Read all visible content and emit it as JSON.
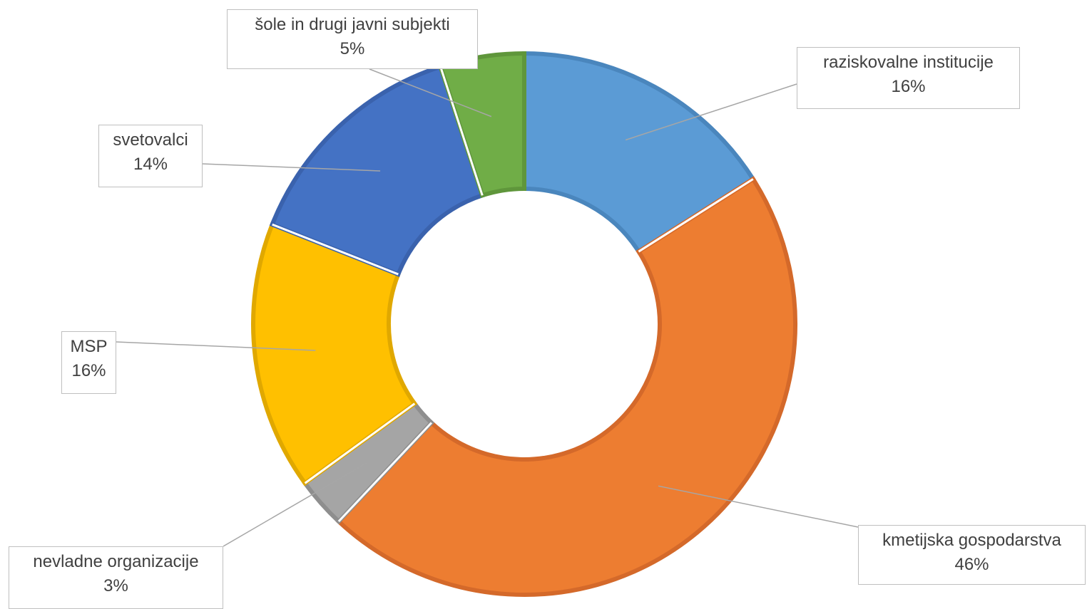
{
  "chart_data": {
    "type": "pie",
    "variant": "doughnut",
    "title": "",
    "series": [
      {
        "values": [
          16,
          46,
          3,
          16,
          14,
          5
        ]
      }
    ],
    "slices": [
      {
        "label": "raziskovalne institucije",
        "value": 16,
        "value_label": "16%",
        "color": "#5b9bd5",
        "border": "#4a86bd"
      },
      {
        "label": "kmetijska gospodarstva",
        "value": 46,
        "value_label": "46%",
        "color": "#ed7d31",
        "border": "#d4692a"
      },
      {
        "label": "nevladne organizacije",
        "value": 3,
        "value_label": "3%",
        "color": "#a5a5a5",
        "border": "#8e8e8e"
      },
      {
        "label": "MSP",
        "value": 16,
        "value_label": "16%",
        "color": "#ffc000",
        "border": "#e0a800"
      },
      {
        "label": "svetovalci",
        "value": 14,
        "value_label": "14%",
        "color": "#4472c4",
        "border": "#3a62ad"
      },
      {
        "label": "šole in drugi javni subjekti",
        "value": 5,
        "value_label": "5%",
        "color": "#70ad47",
        "border": "#5f963b"
      }
    ],
    "legend": "none",
    "data_labels": "callouts"
  }
}
